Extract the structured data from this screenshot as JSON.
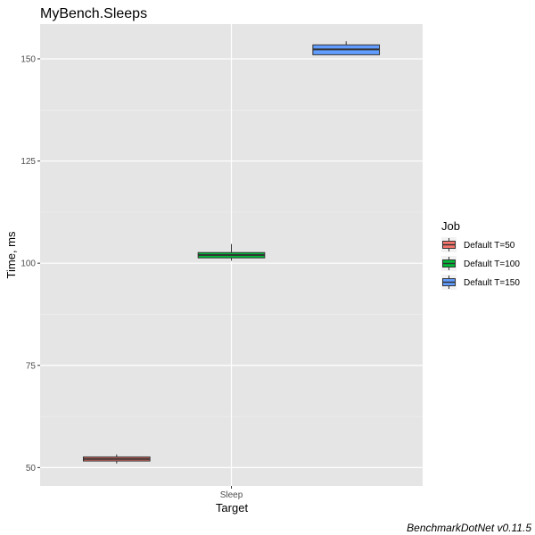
{
  "chart_data": {
    "type": "box",
    "title": "MyBench.Sleeps",
    "xlabel": "Target",
    "ylabel": "Time, ms",
    "categories": [
      "Sleep"
    ],
    "yticks": [
      50,
      75,
      100,
      125,
      150
    ],
    "ylim": [
      45.5,
      158.5
    ],
    "grid": true,
    "legend": {
      "title": "Job",
      "placement": "right"
    },
    "caption": "BenchmarkDotNet v0.11.5",
    "series": [
      {
        "name": "Default T=50",
        "color": "#F8766D",
        "min": 51.0,
        "q1": 51.6,
        "median": 52.1,
        "q3": 52.6,
        "max": 53.2
      },
      {
        "name": "Default T=100",
        "color": "#00BA38",
        "min": 100.6,
        "q1": 101.3,
        "median": 102.0,
        "q3": 102.6,
        "max": 104.7
      },
      {
        "name": "Default T=150",
        "color": "#619CFF",
        "min": 151.0,
        "q1": 151.0,
        "median": 152.3,
        "q3": 153.4,
        "max": 154.3
      }
    ]
  }
}
